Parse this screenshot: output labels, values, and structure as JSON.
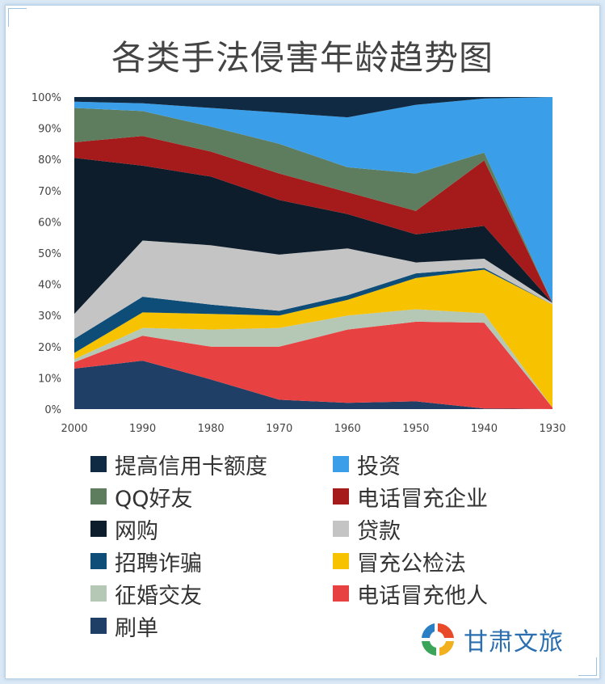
{
  "chart_data": {
    "type": "area",
    "stacked": true,
    "percent": true,
    "title": "各类手法侵害年龄趋势图",
    "x": [
      "2000",
      "1990",
      "1980",
      "1970",
      "1960",
      "1950",
      "1940",
      "1930"
    ],
    "y_ticks": [
      "0%",
      "10%",
      "20%",
      "30%",
      "40%",
      "50%",
      "60%",
      "70%",
      "80%",
      "90%",
      "100%"
    ],
    "ylim": [
      0,
      100
    ],
    "series": [
      {
        "name": "刷单",
        "color": "#1f3f66",
        "values": [
          13,
          15.5,
          9.5,
          3,
          2,
          2.5,
          0.2,
          0
        ]
      },
      {
        "name": "电话冒充他人",
        "color": "#e84142",
        "values": [
          2,
          8,
          10.5,
          17,
          23.5,
          25.5,
          27.5,
          0.5
        ]
      },
      {
        "name": "征婚交友",
        "color": "#b5c8b5",
        "values": [
          1,
          2.5,
          5.5,
          6,
          4.5,
          4,
          3,
          0
        ]
      },
      {
        "name": "冒充公检法",
        "color": "#f7c200",
        "values": [
          2,
          5,
          5,
          4,
          5,
          10,
          14,
          33
        ]
      },
      {
        "name": "招聘诈骗",
        "color": "#0e4d78",
        "values": [
          4.5,
          5,
          3,
          1.5,
          1.5,
          1.5,
          0.5,
          0
        ]
      },
      {
        "name": "贷款",
        "color": "#c4c4c4",
        "values": [
          8,
          18,
          19,
          18,
          15,
          3.5,
          3,
          0.5
        ]
      },
      {
        "name": "网购",
        "color": "#0d1d2c",
        "values": [
          50,
          24,
          22,
          17.5,
          11,
          9,
          10.5,
          0
        ]
      },
      {
        "name": "电话冒充企业",
        "color": "#a51a1a",
        "values": [
          5,
          9.5,
          8,
          8.5,
          7,
          7.5,
          21,
          0
        ]
      },
      {
        "name": "QQ好友",
        "color": "#5e7d5e",
        "values": [
          11,
          8,
          8,
          9.5,
          8,
          12,
          2.5,
          0
        ]
      },
      {
        "name": "投资",
        "color": "#3a9fe8",
        "values": [
          2,
          2.5,
          6,
          10,
          16,
          22,
          17.3,
          66
        ]
      },
      {
        "name": "提高信用卡额度",
        "color": "#102a44",
        "values": [
          1.5,
          2,
          3.5,
          5,
          6.5,
          2.5,
          0.5,
          0
        ]
      }
    ],
    "legend": [
      {
        "name": "提高信用卡额度",
        "color": "#102a44"
      },
      {
        "name": "投资",
        "color": "#3a9fe8"
      },
      {
        "name": "QQ好友",
        "color": "#5e7d5e"
      },
      {
        "name": "电话冒充企业",
        "color": "#a51a1a"
      },
      {
        "name": "网购",
        "color": "#0d1d2c"
      },
      {
        "name": "贷款",
        "color": "#c4c4c4"
      },
      {
        "name": "招聘诈骗",
        "color": "#0e4d78"
      },
      {
        "name": "冒充公检法",
        "color": "#f7c200"
      },
      {
        "name": "征婚交友",
        "color": "#b5c8b5"
      },
      {
        "name": "电话冒充他人",
        "color": "#e84142"
      },
      {
        "name": "刷单",
        "color": "#1f3f66"
      }
    ]
  },
  "watermark": {
    "text": "甘肃文旅"
  }
}
